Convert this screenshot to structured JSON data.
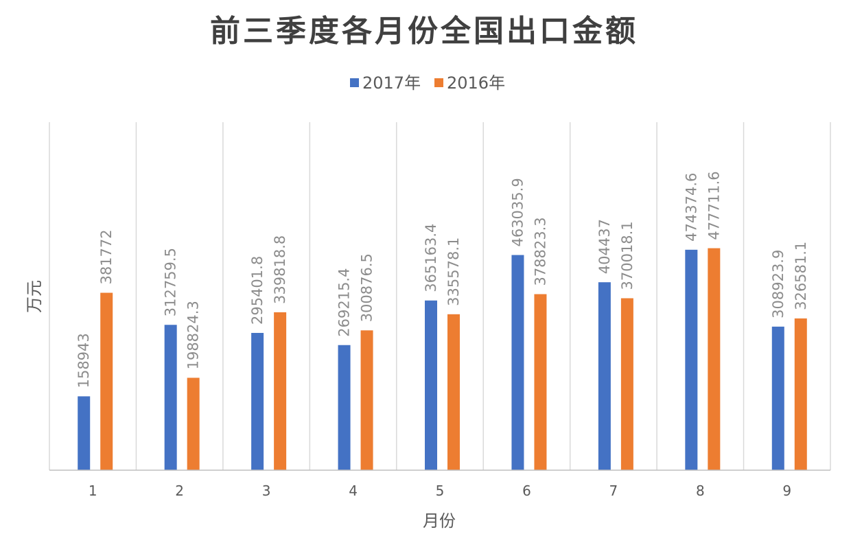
{
  "chart_data": {
    "type": "bar",
    "title": "前三季度各月份全国出口金额",
    "xlabel": "月份",
    "ylabel": "万元",
    "categories": [
      "1",
      "2",
      "3",
      "4",
      "5",
      "6",
      "7",
      "8",
      "9"
    ],
    "series": [
      {
        "name": "2017年",
        "color": "#4472C4",
        "values": [
          158943,
          312759.5,
          295401.8,
          269215.4,
          365163.4,
          463035.9,
          404437,
          474374.6,
          308923.9
        ]
      },
      {
        "name": "2016年",
        "color": "#ED7D31",
        "values": [
          381772,
          198824.3,
          339818.8,
          300876.5,
          335578.1,
          378823.3,
          370018.1,
          477711.6,
          326581.1
        ]
      }
    ],
    "ylim": [
      0,
      600000
    ],
    "grid": "vertical",
    "legend": "top-center"
  }
}
